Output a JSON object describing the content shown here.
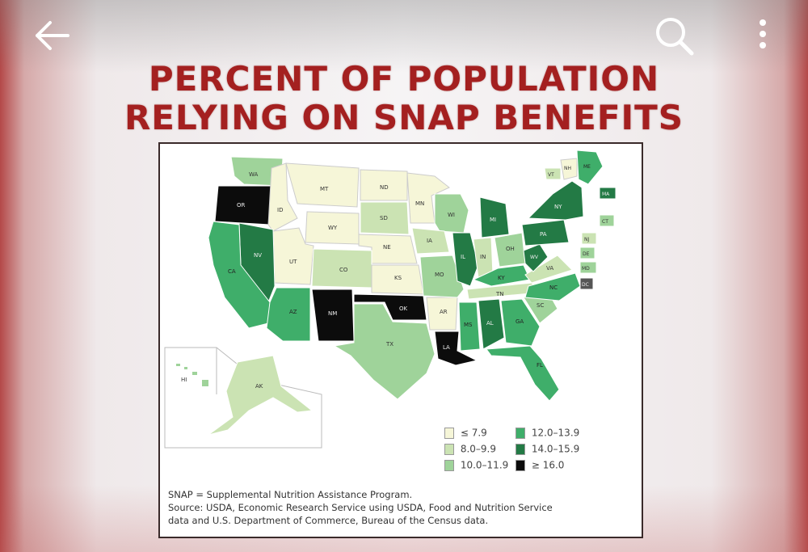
{
  "topbar": {
    "back_icon": "arrow-left-icon",
    "search_icon": "search-icon",
    "more_icon": "more-vertical-icon"
  },
  "title": {
    "line1": "PERCENT OF POPULATION",
    "line2": "RELYING ON SNAP BENEFITS"
  },
  "map": {
    "states": [
      "WA",
      "OR",
      "ID",
      "MT",
      "WY",
      "ND",
      "SD",
      "NE",
      "MN",
      "WI",
      "IA",
      "UT",
      "CO",
      "KS",
      "NV",
      "CA",
      "AZ",
      "NM",
      "OK",
      "TX",
      "AR",
      "LA",
      "MS",
      "AL",
      "MO",
      "IL",
      "IN",
      "MI",
      "OH",
      "KY",
      "TN",
      "GA",
      "FL",
      "SC",
      "NC",
      "VA",
      "WV",
      "PA",
      "NY",
      "VT",
      "NH",
      "ME",
      "MA",
      "CT",
      "NJ",
      "DE",
      "MD",
      "DC",
      "HI",
      "AK"
    ]
  },
  "legend": {
    "items": [
      {
        "label": "≤ 7.9",
        "color": "#f6f6d8"
      },
      {
        "label": "8.0–9.9",
        "color": "#cbe3b3"
      },
      {
        "label": "10.0–11.9",
        "color": "#9fd39a"
      },
      {
        "label": "12.0–13.9",
        "color": "#3fae6a"
      },
      {
        "label": "14.0–15.9",
        "color": "#237a45"
      },
      {
        "label": "≥ 16.0",
        "color": "#0c0c0c"
      }
    ]
  },
  "footnote": {
    "line1": "SNAP = Supplemental Nutrition Assistance Program.",
    "line2": "Source: USDA, Economic Research Service using USDA, Food and Nutrition Service",
    "line3": "data and U.S. Department of Commerce, Bureau of the Census data."
  },
  "colors": {
    "title": "#a42020",
    "frame_edge": "#b44848"
  }
}
